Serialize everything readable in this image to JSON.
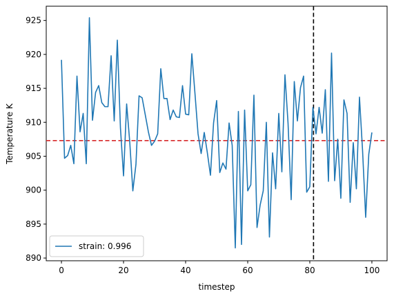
{
  "chart_data": {
    "type": "line",
    "title": "",
    "xlabel": "timestep",
    "ylabel": "Temperature K",
    "xlim": [
      -4.9,
      104.9
    ],
    "ylim": [
      889.6,
      927.1
    ],
    "xticks": [
      0,
      20,
      40,
      60,
      80,
      100
    ],
    "yticks": [
      890,
      895,
      900,
      905,
      910,
      915,
      920,
      925
    ],
    "grid": false,
    "legend_position": "lower-left",
    "series": [
      {
        "name": "strain: 0.996",
        "color": "#1f77b4",
        "x": [
          0,
          1,
          2,
          3,
          4,
          5,
          6,
          7,
          8,
          9,
          10,
          11,
          12,
          13,
          14,
          15,
          16,
          17,
          18,
          19,
          20,
          21,
          22,
          23,
          24,
          25,
          26,
          27,
          28,
          29,
          30,
          31,
          32,
          33,
          34,
          35,
          36,
          37,
          38,
          39,
          40,
          41,
          42,
          43,
          44,
          45,
          46,
          47,
          48,
          49,
          50,
          51,
          52,
          53,
          54,
          55,
          56,
          57,
          58,
          59,
          60,
          61,
          62,
          63,
          64,
          65,
          66,
          67,
          68,
          69,
          70,
          71,
          72,
          73,
          74,
          75,
          76,
          77,
          78,
          79,
          80,
          81,
          82,
          83,
          84,
          85,
          86,
          87,
          88,
          89,
          90,
          91,
          92,
          93,
          94,
          95,
          96,
          97,
          98,
          99,
          100
        ],
        "y": [
          919.2,
          904.7,
          905.1,
          906.6,
          903.9,
          916.8,
          908.6,
          911.3,
          903.9,
          925.4,
          910.3,
          914.4,
          915.4,
          912.9,
          912.3,
          912.3,
          919.8,
          910.2,
          922.1,
          909.2,
          902.1,
          912.7,
          907.1,
          899.9,
          903.8,
          913.9,
          913.6,
          911.1,
          908.6,
          906.6,
          907.2,
          908.3,
          917.9,
          913.5,
          913.5,
          910.4,
          911.8,
          910.8,
          910.7,
          915.4,
          911.2,
          911.1,
          920.1,
          914.3,
          908.3,
          905.4,
          908.5,
          905.5,
          902.2,
          909.9,
          913.2,
          902.6,
          904.0,
          903.1,
          909.9,
          906.6,
          891.5,
          911.6,
          892.0,
          911.8,
          899.9,
          900.8,
          914.0,
          894.5,
          897.8,
          899.9,
          910.0,
          893.1,
          905.5,
          900.2,
          911.3,
          902.7,
          917.0,
          909.8,
          898.6,
          916.0,
          910.2,
          915.1,
          916.8,
          899.7,
          900.5,
          912.2,
          908.3,
          912.2,
          908.4,
          914.8,
          901.3,
          920.2,
          901.4,
          907.5,
          898.8,
          913.3,
          911.3,
          898.2,
          907.0,
          900.2,
          913.7,
          905.8,
          896.0,
          905.3,
          908.5
        ]
      }
    ],
    "reference_lines": [
      {
        "orientation": "horizontal",
        "value": 907.3,
        "color": "#d62728",
        "style": "dashed"
      },
      {
        "orientation": "vertical",
        "value": 81.2,
        "color": "#000000",
        "style": "dashed"
      }
    ]
  }
}
